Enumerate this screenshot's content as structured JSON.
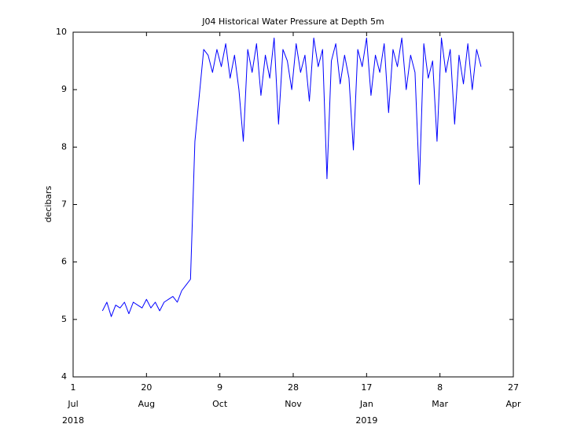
{
  "chart_data": {
    "type": "line",
    "title": "J04 Historical Water Pressure at Depth 5m",
    "y_label": "decibars",
    "x": [
      "2018-07-21",
      "2018-07-24",
      "2018-07-27",
      "2018-07-30",
      "2018-08-02",
      "2018-08-05",
      "2018-08-08",
      "2018-08-11",
      "2018-08-14",
      "2018-08-17",
      "2018-08-20",
      "2018-08-23",
      "2018-08-26",
      "2018-08-29",
      "2018-09-01",
      "2018-09-04",
      "2018-09-07",
      "2018-09-10",
      "2018-09-13",
      "2018-09-16",
      "2018-09-19",
      "2018-09-22",
      "2018-09-25",
      "2018-09-28",
      "2018-10-01",
      "2018-10-04",
      "2018-10-07",
      "2018-10-10",
      "2018-10-13",
      "2018-10-16",
      "2018-10-19",
      "2018-10-22",
      "2018-10-25",
      "2018-10-28",
      "2018-10-31",
      "2018-11-03",
      "2018-11-06",
      "2018-11-09",
      "2018-11-12",
      "2018-11-15",
      "2018-11-18",
      "2018-11-21",
      "2018-11-24",
      "2018-11-27",
      "2018-11-30",
      "2018-12-03",
      "2018-12-06",
      "2018-12-09",
      "2018-12-12",
      "2018-12-15",
      "2018-12-18",
      "2018-12-21",
      "2018-12-24",
      "2018-12-27",
      "2018-12-30",
      "2019-01-02",
      "2019-01-05",
      "2019-01-08",
      "2019-01-11",
      "2019-01-14",
      "2019-01-17",
      "2019-01-20",
      "2019-01-23",
      "2019-01-26",
      "2019-01-29",
      "2019-02-01",
      "2019-02-04",
      "2019-02-07",
      "2019-02-10",
      "2019-02-13",
      "2019-02-16",
      "2019-02-19",
      "2019-02-22",
      "2019-02-25",
      "2019-02-28",
      "2019-03-03",
      "2019-03-06",
      "2019-03-09",
      "2019-03-12",
      "2019-03-15",
      "2019-03-18",
      "2019-03-21",
      "2019-03-24",
      "2019-03-27",
      "2019-03-30",
      "2019-04-02",
      "2019-04-05"
    ],
    "series": [
      {
        "name": "pressure",
        "color": "#0000ff",
        "values": [
          5.15,
          5.3,
          5.05,
          5.25,
          5.2,
          5.3,
          5.1,
          5.3,
          5.25,
          5.2,
          5.35,
          5.2,
          5.3,
          5.15,
          5.3,
          5.35,
          5.4,
          5.3,
          5.5,
          5.6,
          5.7,
          8.1,
          8.9,
          9.7,
          9.6,
          9.3,
          9.7,
          9.4,
          9.8,
          9.2,
          9.6,
          9.0,
          8.1,
          9.7,
          9.3,
          9.8,
          8.9,
          9.6,
          9.2,
          9.9,
          8.4,
          9.7,
          9.5,
          9.0,
          9.8,
          9.3,
          9.6,
          8.8,
          9.9,
          9.4,
          9.7,
          7.45,
          9.5,
          9.8,
          9.1,
          9.6,
          9.2,
          7.95,
          9.7,
          9.4,
          9.9,
          8.9,
          9.6,
          9.3,
          9.8,
          8.6,
          9.7,
          9.4,
          9.9,
          9.0,
          9.6,
          9.3,
          7.35,
          9.8,
          9.2,
          9.5,
          8.1,
          9.9,
          9.3,
          9.7,
          8.4,
          9.6,
          9.1,
          9.8,
          9.0,
          9.7,
          9.4
        ]
      }
    ],
    "xlim": [
      "2018-07-01",
      "2019-04-27"
    ],
    "xticks": [
      {
        "value": "2018-07-01",
        "label": [
          "1",
          "Jul",
          "2018"
        ]
      },
      {
        "value": "2018-08-20",
        "label": [
          "20",
          "Aug"
        ]
      },
      {
        "value": "2018-10-09",
        "label": [
          "9",
          "Oct"
        ]
      },
      {
        "value": "2018-11-28",
        "label": [
          "28",
          "Nov"
        ]
      },
      {
        "value": "2019-01-17",
        "label": [
          "17",
          "Jan",
          "2019"
        ]
      },
      {
        "value": "2019-03-08",
        "label": [
          "8",
          "Mar"
        ]
      },
      {
        "value": "2019-04-27",
        "label": [
          "27",
          "Apr"
        ]
      }
    ],
    "ylim": [
      4,
      10
    ],
    "yticks": [
      4,
      5,
      6,
      7,
      8,
      9,
      10
    ]
  }
}
